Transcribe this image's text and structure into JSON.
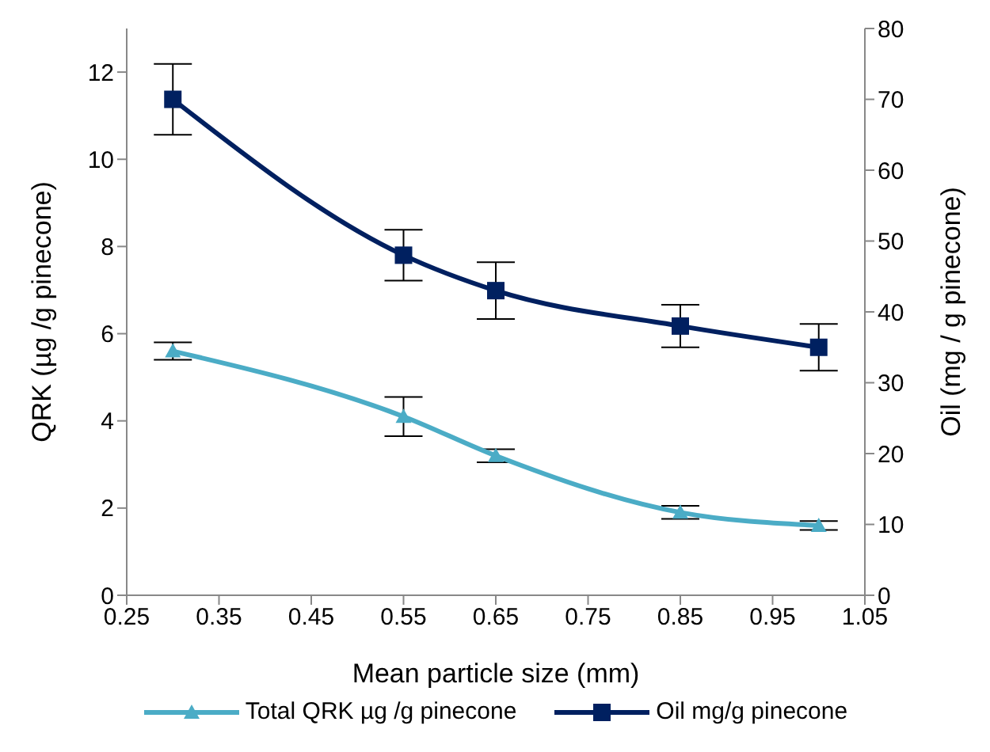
{
  "chart_data": {
    "type": "line",
    "xlabel": "Mean particle size (mm)",
    "ylabel": "QRK (µg /g  pinecone)",
    "y2label": "Oil (mg / g pinecone)",
    "x": [
      0.3,
      0.55,
      0.65,
      0.85,
      1.0
    ],
    "series": [
      {
        "name": "Total QRK µg /g pinecone",
        "color": "#4bacc6",
        "marker": "triangle",
        "values": [
          5.6,
          4.1,
          3.2,
          1.9,
          1.6
        ],
        "errors": [
          0.2,
          0.45,
          0.15,
          0.15,
          0.1
        ]
      },
      {
        "name": "Oil mg/g pinecone",
        "color": "#002060",
        "marker": "square",
        "axis": "y2",
        "values": [
          70,
          48,
          43,
          38,
          35
        ],
        "errors": [
          5,
          3.6,
          4,
          3,
          3.3
        ]
      }
    ],
    "xlim": [
      0.25,
      1.05
    ],
    "xticks": [
      0.25,
      0.35,
      0.45,
      0.55,
      0.65,
      0.75,
      0.85,
      0.95,
      1.05
    ],
    "ylim": [
      0,
      13
    ],
    "yticks": [
      0,
      2,
      4,
      6,
      8,
      10,
      12
    ],
    "y2lim": [
      0,
      80
    ],
    "y2ticks": [
      0,
      10,
      20,
      30,
      40,
      50,
      60,
      70,
      80
    ],
    "grid": false,
    "legend": "bottom",
    "line_style": "solid"
  }
}
